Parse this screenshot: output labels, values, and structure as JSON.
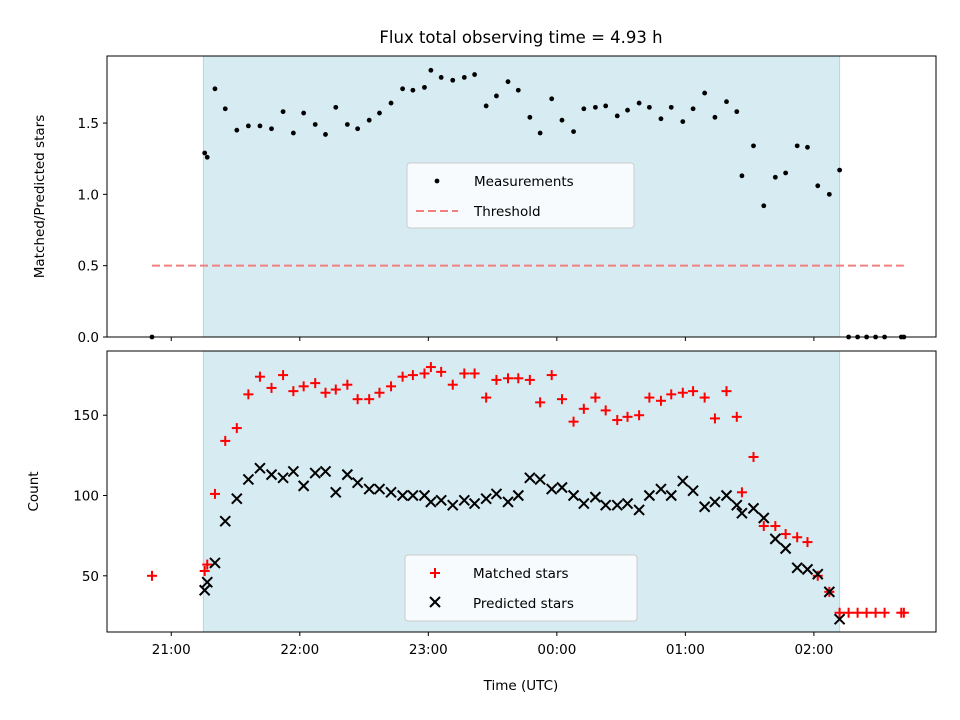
{
  "figure": {
    "title": "Flux total observing time = 4.93 h"
  },
  "colors": {
    "shade": "#add8e6",
    "measurement": "#000000",
    "threshold": "#f08080",
    "matched": "#ff0000",
    "predicted": "#000000"
  },
  "chart_data": [
    {
      "type": "scatter",
      "ylabel": "Matched/Predicted stars",
      "xlim": [
        20.5,
        26.95
      ],
      "ylim": [
        0,
        1.97
      ],
      "yticks": [
        0.0,
        0.5,
        1.0,
        1.5
      ],
      "ytick_labels": [
        "0.0",
        "0.5",
        "1.0",
        "1.5"
      ],
      "xticks": [
        21,
        22,
        23,
        24,
        25,
        26
      ],
      "shaded_span": [
        21.25,
        26.2
      ],
      "legend": {
        "position": "center",
        "entries": [
          "Measurements",
          "Threshold"
        ]
      },
      "threshold": {
        "name": "Threshold",
        "y": 0.5,
        "x": [
          20.85,
          26.7
        ]
      },
      "series": [
        {
          "name": "Measurements",
          "marker": "dot",
          "x": [
            20.85,
            21.26,
            21.28,
            21.34,
            21.42,
            21.51,
            21.6,
            21.69,
            21.78,
            21.87,
            21.95,
            22.03,
            22.12,
            22.2,
            22.28,
            22.37,
            22.45,
            22.54,
            22.62,
            22.71,
            22.8,
            22.88,
            22.97,
            23.02,
            23.1,
            23.19,
            23.28,
            23.36,
            23.45,
            23.53,
            23.62,
            23.7,
            23.79,
            23.87,
            23.96,
            24.04,
            24.13,
            24.21,
            24.3,
            24.38,
            24.47,
            24.55,
            24.64,
            24.72,
            24.81,
            24.89,
            24.98,
            25.06,
            25.15,
            25.23,
            25.32,
            25.4,
            25.44,
            25.53,
            25.61,
            25.7,
            25.78,
            25.87,
            25.95,
            26.03,
            26.12,
            26.2,
            26.27,
            26.34,
            26.41,
            26.48,
            26.55,
            26.68,
            26.7
          ],
          "y": [
            0.0,
            1.29,
            1.26,
            1.74,
            1.6,
            1.45,
            1.48,
            1.48,
            1.46,
            1.58,
            1.43,
            1.57,
            1.49,
            1.42,
            1.61,
            1.49,
            1.46,
            1.52,
            1.57,
            1.64,
            1.74,
            1.73,
            1.75,
            1.87,
            1.82,
            1.8,
            1.82,
            1.84,
            1.62,
            1.69,
            1.79,
            1.73,
            1.54,
            1.43,
            1.67,
            1.52,
            1.44,
            1.6,
            1.61,
            1.62,
            1.55,
            1.59,
            1.64,
            1.61,
            1.53,
            1.61,
            1.51,
            1.6,
            1.71,
            1.54,
            1.65,
            1.58,
            1.13,
            1.34,
            0.92,
            1.12,
            1.15,
            1.34,
            1.33,
            1.06,
            1.0,
            1.17,
            0.0,
            0.0,
            0.0,
            0.0,
            0.0,
            0.0,
            0.0
          ]
        }
      ]
    },
    {
      "type": "scatter",
      "xlabel": "Time (UTC)",
      "ylabel": "Count",
      "xlim": [
        20.5,
        26.95
      ],
      "ylim": [
        15,
        190
      ],
      "yticks": [
        50,
        100,
        150
      ],
      "ytick_labels": [
        "50",
        "100",
        "150"
      ],
      "xticks": [
        21,
        22,
        23,
        24,
        25,
        26
      ],
      "xtick_labels": [
        "21:00",
        "22:00",
        "23:00",
        "00:00",
        "01:00",
        "02:00"
      ],
      "shaded_span": [
        21.25,
        26.2
      ],
      "legend": {
        "position": "lower center",
        "entries": [
          "Matched stars",
          "Predicted stars"
        ]
      },
      "series": [
        {
          "name": "Matched stars",
          "marker": "plus",
          "x": [
            20.85,
            21.26,
            21.28,
            21.34,
            21.42,
            21.51,
            21.6,
            21.69,
            21.78,
            21.87,
            21.95,
            22.03,
            22.12,
            22.2,
            22.28,
            22.37,
            22.45,
            22.54,
            22.62,
            22.71,
            22.8,
            22.88,
            22.97,
            23.02,
            23.1,
            23.19,
            23.28,
            23.36,
            23.45,
            23.53,
            23.62,
            23.7,
            23.79,
            23.87,
            23.96,
            24.04,
            24.13,
            24.21,
            24.3,
            24.38,
            24.47,
            24.55,
            24.64,
            24.72,
            24.81,
            24.89,
            24.98,
            25.06,
            25.15,
            25.23,
            25.32,
            25.4,
            25.44,
            25.53,
            25.61,
            25.7,
            25.78,
            25.87,
            25.95,
            26.03,
            26.12,
            26.2,
            26.27,
            26.34,
            26.41,
            26.48,
            26.55,
            26.68,
            26.7
          ],
          "y": [
            50,
            53,
            57,
            101,
            134,
            142,
            163,
            174,
            167,
            175,
            165,
            168,
            170,
            164,
            166,
            169,
            160,
            160,
            164,
            168,
            174,
            175,
            176,
            180,
            177,
            169,
            176,
            176,
            161,
            172,
            173,
            173,
            172,
            158,
            175,
            160,
            146,
            154,
            161,
            153,
            147,
            149,
            150,
            161,
            159,
            163,
            164,
            165,
            161,
            148,
            165,
            149,
            102,
            124,
            81,
            81,
            76,
            74,
            71,
            50,
            40,
            27,
            27,
            27,
            27,
            27,
            27,
            27,
            27
          ]
        },
        {
          "name": "Predicted stars",
          "marker": "cross",
          "x": [
            21.26,
            21.28,
            21.34,
            21.42,
            21.51,
            21.6,
            21.69,
            21.78,
            21.87,
            21.95,
            22.03,
            22.12,
            22.2,
            22.28,
            22.37,
            22.45,
            22.54,
            22.62,
            22.71,
            22.8,
            22.88,
            22.97,
            23.02,
            23.1,
            23.19,
            23.28,
            23.36,
            23.45,
            23.53,
            23.62,
            23.7,
            23.79,
            23.87,
            23.96,
            24.04,
            24.13,
            24.21,
            24.3,
            24.38,
            24.47,
            24.55,
            24.64,
            24.72,
            24.81,
            24.89,
            24.98,
            25.06,
            25.15,
            25.23,
            25.32,
            25.4,
            25.44,
            25.53,
            25.61,
            25.7,
            25.78,
            25.87,
            25.95,
            26.03,
            26.12,
            26.2
          ],
          "y": [
            41,
            46,
            58,
            84,
            98,
            110,
            117,
            113,
            111,
            115,
            106,
            114,
            115,
            102,
            113,
            108,
            104,
            104,
            102,
            100,
            100,
            100,
            96,
            97,
            94,
            97,
            95,
            98,
            101,
            96,
            100,
            111,
            110,
            104,
            105,
            100,
            95,
            99,
            94,
            94,
            95,
            91,
            100,
            104,
            100,
            109,
            103,
            93,
            96,
            100,
            94,
            89,
            92,
            86,
            73,
            67,
            55,
            54,
            51,
            40,
            23
          ]
        }
      ]
    }
  ]
}
